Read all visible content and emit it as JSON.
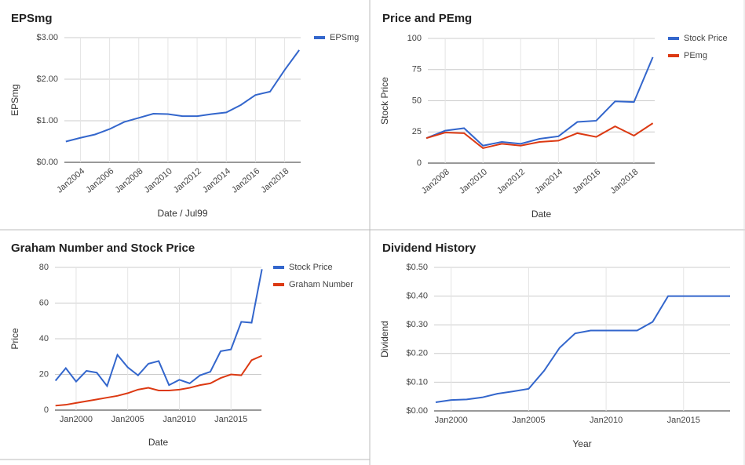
{
  "chart_data": [
    {
      "type": "line",
      "title": "EPSmg",
      "x_label": "Date / Jul99",
      "y_label": "EPSmg",
      "legend": "right",
      "grid": true,
      "x": [
        2003,
        2004,
        2005,
        2006,
        2007,
        2008,
        2009,
        2010,
        2011,
        2012,
        2013,
        2014,
        2015,
        2016,
        2017,
        2018,
        2019
      ],
      "series": [
        {
          "name": "EPSmg",
          "color": "#3366cc",
          "values": [
            0.5,
            0.59,
            0.67,
            0.8,
            0.97,
            1.07,
            1.17,
            1.16,
            1.11,
            1.11,
            1.16,
            1.2,
            1.38,
            1.62,
            1.7,
            2.22,
            2.7
          ]
        }
      ],
      "xlim": [
        2002.9,
        2019.1
      ],
      "xticks": [
        {
          "value": 2004,
          "label": "Jan2004"
        },
        {
          "value": 2006,
          "label": "Jan2006"
        },
        {
          "value": 2008,
          "label": "Jan2008"
        },
        {
          "value": 2010,
          "label": "Jan2010"
        },
        {
          "value": 2012,
          "label": "Jan2012"
        },
        {
          "value": 2014,
          "label": "Jan2014"
        },
        {
          "value": 2016,
          "label": "Jan2016"
        },
        {
          "value": 2018,
          "label": "Jan2018"
        }
      ],
      "ylim": [
        0,
        3
      ],
      "yticks": [
        {
          "value": 0,
          "label": "$0.00"
        },
        {
          "value": 1,
          "label": "$1.00"
        },
        {
          "value": 2,
          "label": "$2.00"
        },
        {
          "value": 3,
          "label": "$3.00"
        }
      ]
    },
    {
      "type": "line",
      "title": "Price and PEmg",
      "x_label": "Date",
      "y_label": "Stock Price",
      "legend": "right",
      "grid": true,
      "x": [
        2007,
        2008,
        2009,
        2010,
        2011,
        2012,
        2013,
        2014,
        2015,
        2016,
        2017,
        2018,
        2019
      ],
      "series": [
        {
          "name": "Stock Price",
          "color": "#3366cc",
          "values": [
            20,
            26,
            28,
            14,
            17,
            15.5,
            19.5,
            21.5,
            33,
            34,
            49.5,
            49,
            85
          ]
        },
        {
          "name": "PEmg",
          "color": "#dc3912",
          "values": [
            20,
            24.5,
            24,
            12,
            15.5,
            14,
            17,
            18,
            24,
            21,
            29.5,
            22,
            32
          ]
        }
      ],
      "xlim": [
        2007.08,
        2019.1
      ],
      "xticks": [
        {
          "value": 2008,
          "label": "Jan2008"
        },
        {
          "value": 2010,
          "label": "Jan2010"
        },
        {
          "value": 2012,
          "label": "Jan2012"
        },
        {
          "value": 2014,
          "label": "Jan2014"
        },
        {
          "value": 2016,
          "label": "Jan2016"
        },
        {
          "value": 2018,
          "label": "Jan2018"
        }
      ],
      "ylim": [
        0,
        100
      ],
      "yticks": [
        0,
        25,
        50,
        75,
        100
      ]
    },
    {
      "type": "line",
      "title": "Graham Number and Stock Price",
      "x_label": "Date",
      "y_label": "Price",
      "legend": "right",
      "grid": true,
      "x": [
        1998,
        1999,
        2000,
        2001,
        2002,
        2003,
        2004,
        2005,
        2006,
        2007,
        2008,
        2009,
        2010,
        2011,
        2012,
        2013,
        2014,
        2015,
        2016,
        2017,
        2018
      ],
      "series": [
        {
          "name": "Stock Price",
          "color": "#3366cc",
          "values": [
            16.5,
            23.5,
            16,
            22,
            21,
            13.5,
            31,
            24,
            19.5,
            26,
            27.5,
            14,
            17,
            15,
            19.5,
            21.5,
            33,
            34,
            49.5,
            49,
            79
          ]
        },
        {
          "name": "Graham Number",
          "color": "#dc3912",
          "values": [
            2.5,
            3,
            4,
            5,
            6,
            7,
            8,
            9.5,
            11.5,
            12.5,
            11,
            11,
            11.5,
            12.5,
            14,
            15,
            18,
            20,
            19.5,
            28,
            30.5
          ]
        }
      ],
      "xlim": [
        1997.95,
        2017.95
      ],
      "xticks": [
        {
          "value": 2000,
          "label": "Jan2000"
        },
        {
          "value": 2005,
          "label": "Jan2005"
        },
        {
          "value": 2010,
          "label": "Jan2010"
        },
        {
          "value": 2015,
          "label": "Jan2015"
        }
      ],
      "ylim": [
        0,
        80
      ],
      "yticks": [
        0,
        20,
        40,
        60,
        80
      ]
    },
    {
      "type": "line",
      "title": "Dividend History",
      "x_label": "Year",
      "y_label": "Dividend",
      "legend": "none",
      "grid": true,
      "x": [
        1999,
        2000,
        2001,
        2002,
        2003,
        2004,
        2005,
        2006,
        2007,
        2008,
        2009,
        2010,
        2011,
        2012,
        2013,
        2014,
        2015,
        2016,
        2017,
        2018
      ],
      "series": [
        {
          "color": "#3366cc",
          "values": [
            0.03,
            0.038,
            0.04,
            0.047,
            0.06,
            0.068,
            0.077,
            0.14,
            0.22,
            0.27,
            0.28,
            0.28,
            0.28,
            0.28,
            0.31,
            0.4,
            0.4,
            0.4,
            0.4,
            0.4
          ]
        }
      ],
      "xlim": [
        1998.9,
        2018.0
      ],
      "xticks": [
        {
          "value": 2000,
          "label": "Jan2000"
        },
        {
          "value": 2005,
          "label": "Jan2005"
        },
        {
          "value": 2010,
          "label": "Jan2010"
        },
        {
          "value": 2015,
          "label": "Jan2015"
        }
      ],
      "ylim": [
        0,
        0.5
      ],
      "yticks": [
        {
          "value": 0,
          "label": "$0.00"
        },
        {
          "value": 0.1,
          "label": "$0.10"
        },
        {
          "value": 0.2,
          "label": "$0.20"
        },
        {
          "value": 0.3,
          "label": "$0.30"
        },
        {
          "value": 0.4,
          "label": "$0.40"
        },
        {
          "value": 0.5,
          "label": "$0.50"
        }
      ]
    }
  ]
}
